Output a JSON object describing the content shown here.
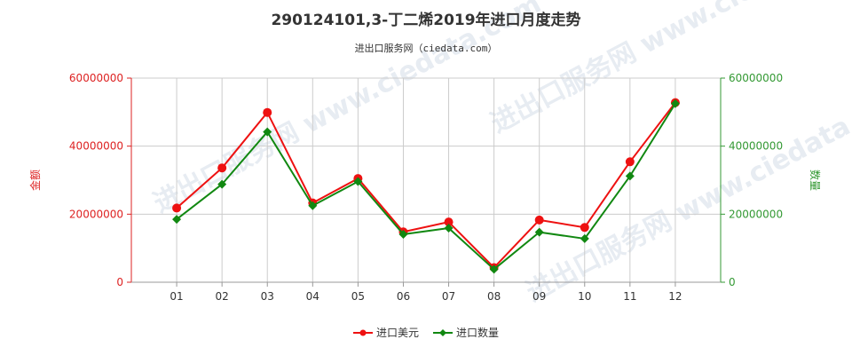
{
  "chart_data": {
    "type": "line",
    "title": "290124101,3-丁二烯2019年进口月度走势",
    "subtitle": "进出口服务网（ciedata.com）",
    "categories": [
      "01",
      "02",
      "03",
      "04",
      "05",
      "06",
      "07",
      "08",
      "09",
      "10",
      "11",
      "12"
    ],
    "y_left": {
      "label": "金额",
      "ylim": [
        0,
        60000000
      ],
      "ticks": [
        "0",
        "20000000",
        "40000000",
        "60000000"
      ],
      "color": "#dd2222"
    },
    "y_right": {
      "label": "数量",
      "ylim": [
        0,
        60000000
      ],
      "ticks": [
        "0",
        "20000000",
        "40000000",
        "60000000"
      ],
      "color": "#339933"
    },
    "series": [
      {
        "name": "进口美元",
        "axis": "left",
        "color": "#ee1111",
        "values": [
          21800000,
          33600000,
          49900000,
          23300000,
          30500000,
          14800000,
          17700000,
          4300000,
          18300000,
          16100000,
          35400000,
          52800000
        ]
      },
      {
        "name": "进口数量",
        "axis": "right",
        "color": "#118811",
        "values": [
          18500000,
          28800000,
          44200000,
          22500000,
          29600000,
          14100000,
          15900000,
          3800000,
          14700000,
          12800000,
          31200000,
          52500000
        ]
      }
    ],
    "grid": true,
    "legend_position": "bottom-center"
  },
  "watermark": "进出口服务网 www.ciedata.com"
}
